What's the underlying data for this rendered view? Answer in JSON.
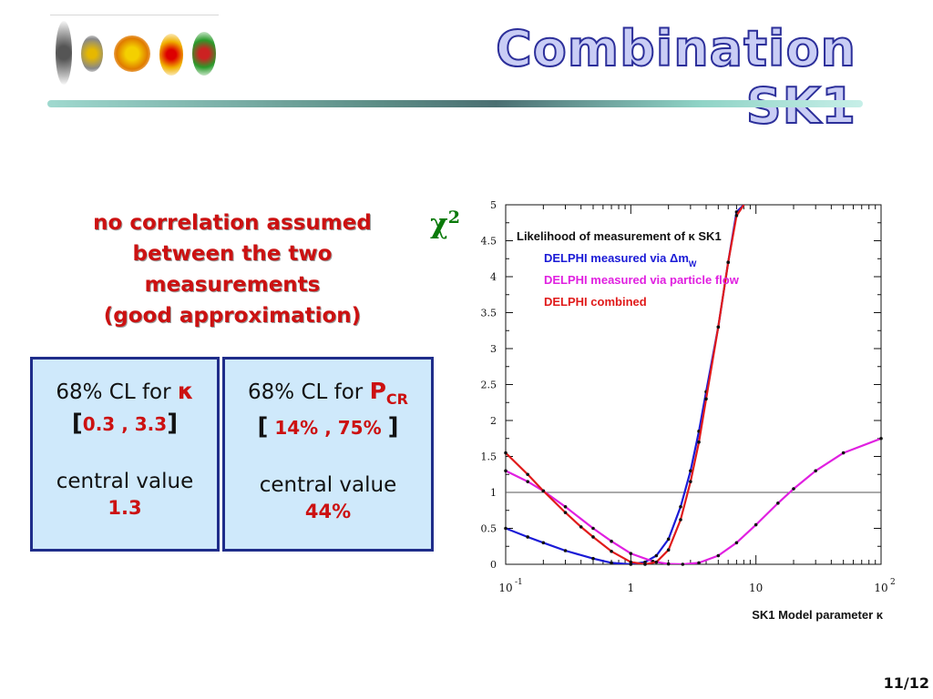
{
  "title": "Combination SK1",
  "note_lines": [
    "no correlation assumed",
    "between the two",
    "measurements",
    "(good approximation)"
  ],
  "box_kappa": {
    "cl_prefix": "68% CL for ",
    "symbol": "κ",
    "range_open": "[",
    "range_text": "0.3 , 3.3",
    "range_close": "]",
    "central_label": "central value",
    "central_value": "1.3"
  },
  "box_pcr": {
    "cl_prefix": "68% CL for ",
    "symbol": "P",
    "symbol_sub": "CR",
    "range_open": "[",
    "range_text": " 14% , 75% ",
    "range_close": "]",
    "central_label": "central value",
    "central_value": "44%"
  },
  "page_number": "11/12",
  "colors": {
    "title_fill": "#c9cdf5",
    "title_stroke": "#2c2f9a",
    "note": "#cc1111",
    "box_bg": "#cfe9fb",
    "box_border": "#1f2d8a",
    "chi_label": "#0a7a0a"
  },
  "chart_data": {
    "type": "line",
    "ylabel_symbol": "χ",
    "ylabel_power": "2",
    "xlabel": "SK1 Model parameter κ",
    "xscale": "log",
    "xlim": [
      0.1,
      100
    ],
    "ylim": [
      0,
      5
    ],
    "x_ticks": [
      {
        "value": 0.1,
        "base": "10",
        "exp": "-1"
      },
      {
        "value": 1,
        "base": "1",
        "exp": ""
      },
      {
        "value": 10,
        "base": "10",
        "exp": ""
      },
      {
        "value": 100,
        "base": "10",
        "exp": "2"
      }
    ],
    "y_ticks": [
      "0",
      "0.5",
      "1",
      "1.5",
      "2",
      "2.5",
      "3",
      "3.5",
      "4",
      "4.5",
      "5"
    ],
    "reference_line": 1,
    "legend_title": "Likelihood of measurement of κ SK1",
    "legend_placement": "top-left",
    "series": [
      {
        "name": "DELPHI measured via Δm",
        "name_sub": "W",
        "color": "#1a1ad6",
        "x": [
          0.1,
          0.15,
          0.2,
          0.3,
          0.5,
          0.7,
          1.0,
          1.3,
          1.6,
          2.0,
          2.5,
          3.0,
          3.5,
          4.0,
          5.0,
          6.0,
          7.0,
          8.0
        ],
        "y": [
          0.5,
          0.38,
          0.3,
          0.19,
          0.08,
          0.02,
          0.0,
          0.03,
          0.12,
          0.35,
          0.8,
          1.3,
          1.85,
          2.4,
          3.3,
          4.2,
          4.9,
          5.0
        ]
      },
      {
        "name": "DELPHI measured via particle flow",
        "color": "#e020e0",
        "x": [
          0.1,
          0.15,
          0.2,
          0.3,
          0.5,
          0.7,
          1.0,
          1.5,
          2.0,
          2.6,
          3.5,
          5.0,
          7.0,
          10.0,
          15.0,
          20.0,
          30.0,
          50.0,
          100.0
        ],
        "y": [
          1.3,
          1.15,
          1.02,
          0.8,
          0.5,
          0.32,
          0.15,
          0.04,
          0.005,
          0.0,
          0.02,
          0.12,
          0.3,
          0.55,
          0.85,
          1.05,
          1.3,
          1.55,
          1.75
        ]
      },
      {
        "name": "DELPHI combined",
        "color": "#e01a1a",
        "x": [
          0.1,
          0.15,
          0.2,
          0.3,
          0.4,
          0.5,
          0.7,
          1.0,
          1.3,
          1.6,
          2.0,
          2.5,
          3.0,
          3.5,
          4.0,
          5.0,
          6.0,
          7.0,
          8.0
        ],
        "y": [
          1.55,
          1.25,
          1.02,
          0.72,
          0.52,
          0.38,
          0.18,
          0.03,
          0.0,
          0.03,
          0.2,
          0.62,
          1.15,
          1.7,
          2.3,
          3.3,
          4.2,
          4.85,
          5.0
        ]
      }
    ]
  }
}
